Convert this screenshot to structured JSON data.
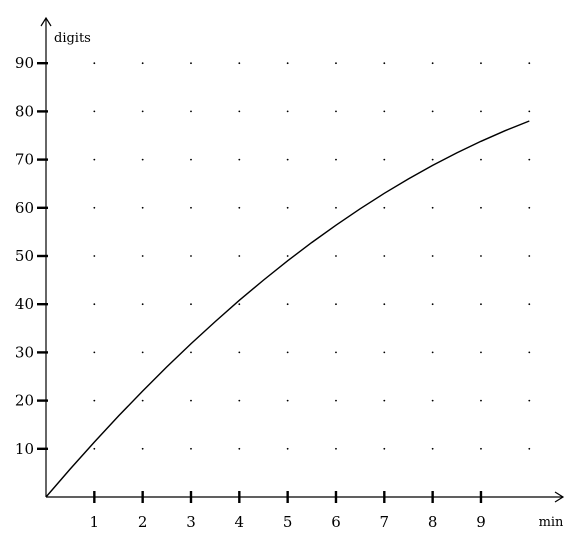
{
  "chart_data": {
    "type": "line",
    "title": "",
    "xlabel": "min",
    "ylabel": "digits",
    "xlim": [
      0,
      10.5
    ],
    "ylim": [
      0,
      90
    ],
    "grid": true,
    "grid_style": "dotted",
    "x_ticks": [
      1,
      2,
      3,
      4,
      5,
      6,
      7,
      8,
      9
    ],
    "y_ticks": [
      10,
      20,
      30,
      40,
      50,
      60,
      70,
      80,
      90
    ],
    "x_tick_labels": [
      "1",
      "2",
      "3",
      "4",
      "5",
      "6",
      "7",
      "8",
      "9"
    ],
    "y_tick_labels": [
      "10",
      "20",
      "30",
      "40",
      "50",
      "60",
      "70",
      "80",
      "90"
    ],
    "series": [
      {
        "color": "#000000",
        "x": [
          0,
          0.5,
          1,
          1.5,
          2,
          2.5,
          3,
          3.5,
          4,
          4.5,
          5,
          5.5,
          6,
          6.5,
          7,
          7.5,
          8,
          8.5,
          9,
          9.5,
          10
        ],
        "y": [
          0,
          5.8,
          11.4,
          16.8,
          22,
          27,
          31.8,
          36.4,
          40.8,
          45,
          49,
          52.8,
          56.4,
          59.8,
          63,
          66,
          68.8,
          71.4,
          73.8,
          76,
          78
        ]
      }
    ]
  }
}
